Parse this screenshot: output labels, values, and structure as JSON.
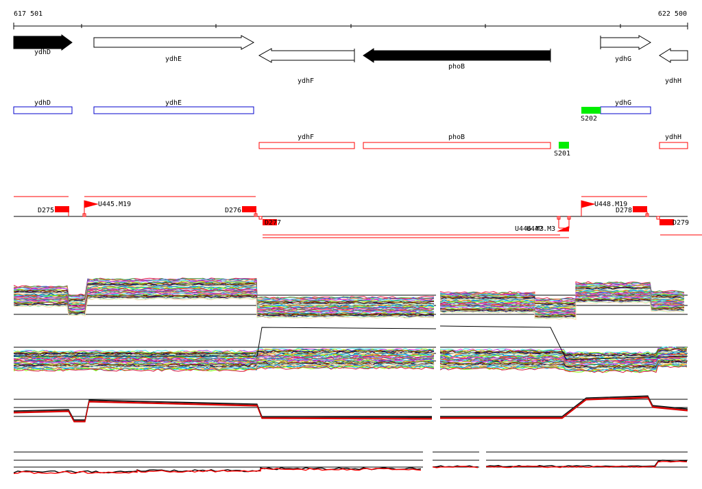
{
  "coords": {
    "start": "617 501",
    "end": "622 500"
  },
  "colors": {
    "red": "#ff0000",
    "green": "#00ee00",
    "blue": "#0000cc",
    "black": "#000000"
  },
  "genes": [
    {
      "name": "ydhD",
      "strand": "+",
      "style": "filled"
    },
    {
      "name": "ydhE",
      "strand": "+",
      "style": "outline"
    },
    {
      "name": "ydhF",
      "strand": "-",
      "style": "outline"
    },
    {
      "name": "phoB",
      "strand": "-",
      "style": "filled"
    },
    {
      "name": "ydhG",
      "strand": "+",
      "style": "outline"
    },
    {
      "name": "ydhH",
      "strand": "-",
      "style": "outline"
    }
  ],
  "forward_features": [
    {
      "name": "ydhD"
    },
    {
      "name": "ydhE"
    },
    {
      "name": "ydhG"
    }
  ],
  "reverse_features": [
    {
      "name": "ydhF"
    },
    {
      "name": "phoB"
    },
    {
      "name": "ydhH"
    }
  ],
  "sites": [
    {
      "name": "S202",
      "color": "green"
    },
    {
      "name": "S201",
      "color": "green"
    }
  ],
  "markers": {
    "D275": "D275",
    "D276": "D276",
    "D277": "D277",
    "D278": "D278",
    "D279": "D279",
    "U445": "U445.M19",
    "U448": "U448.M19",
    "U446": "U446.M3",
    "U447": "U447.M3"
  }
}
